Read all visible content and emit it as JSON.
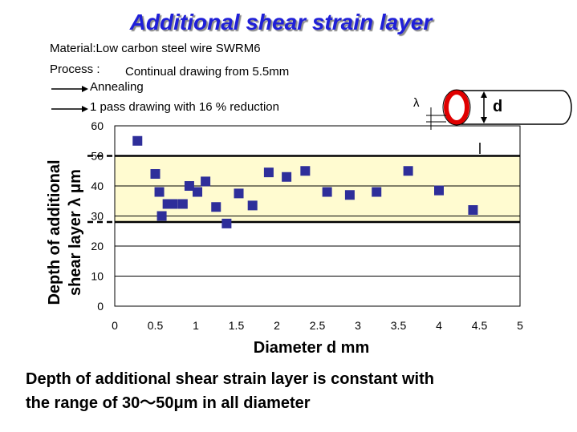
{
  "slide": {
    "title": "Additional shear strain layer",
    "material_line": "Material:Low carbon steel wire  SWRM6",
    "process_label": "Process :",
    "process_text": "Continual drawing from 5.5mm",
    "step_1": "Annealing",
    "step_2": "1 pass drawing with 16 % reduction",
    "conclusion_line_1": "Depth of additional shear strain layer is constant with",
    "conclusion_line_2": "the range of  30～50μm in all diameter"
  },
  "diagram": {
    "lambda_symbol": "λ",
    "d_symbol": "d"
  },
  "colors": {
    "title": "#1f1fd8",
    "marker": "#2e2e9a",
    "band_fill": "#fffbd0",
    "ring": "#e00000"
  },
  "chart_data": {
    "type": "scatter",
    "xlabel": "Diameter  d  mm",
    "ylabel_line_1": "Depth of additional",
    "ylabel_line_2": "shear layer  λ  μm",
    "xlim": [
      0,
      5
    ],
    "ylim": [
      0,
      60
    ],
    "xticks": [
      0,
      0.5,
      1,
      1.5,
      2,
      2.5,
      3,
      3.5,
      4,
      4.5,
      5
    ],
    "xtick_labels": [
      "0",
      "0.5",
      "1",
      "1.5",
      "2",
      "2.5",
      "3",
      "3.5",
      "4",
      "4.5",
      "5"
    ],
    "yticks": [
      0,
      10,
      20,
      30,
      40,
      50,
      60
    ],
    "ytick_labels": [
      "0",
      "10",
      "20",
      "30",
      "40",
      "50",
      "60"
    ],
    "grid": "horizontal",
    "band": [
      28,
      50
    ],
    "series": [
      {
        "points": [
          [
            0.28,
            55
          ],
          [
            0.5,
            44
          ],
          [
            0.55,
            38
          ],
          [
            0.58,
            30
          ],
          [
            0.65,
            34
          ],
          [
            0.72,
            34
          ],
          [
            0.84,
            34
          ],
          [
            0.92,
            40
          ],
          [
            1.02,
            38
          ],
          [
            1.12,
            41.5
          ],
          [
            1.25,
            33
          ],
          [
            1.38,
            27.5
          ],
          [
            1.53,
            37.5
          ],
          [
            1.7,
            33.5
          ],
          [
            1.9,
            44.5
          ],
          [
            2.12,
            43
          ],
          [
            2.35,
            45
          ],
          [
            2.62,
            38
          ],
          [
            2.9,
            37
          ],
          [
            3.23,
            38
          ],
          [
            3.62,
            45
          ],
          [
            4.0,
            38.5
          ],
          [
            4.42,
            32
          ]
        ]
      }
    ]
  }
}
